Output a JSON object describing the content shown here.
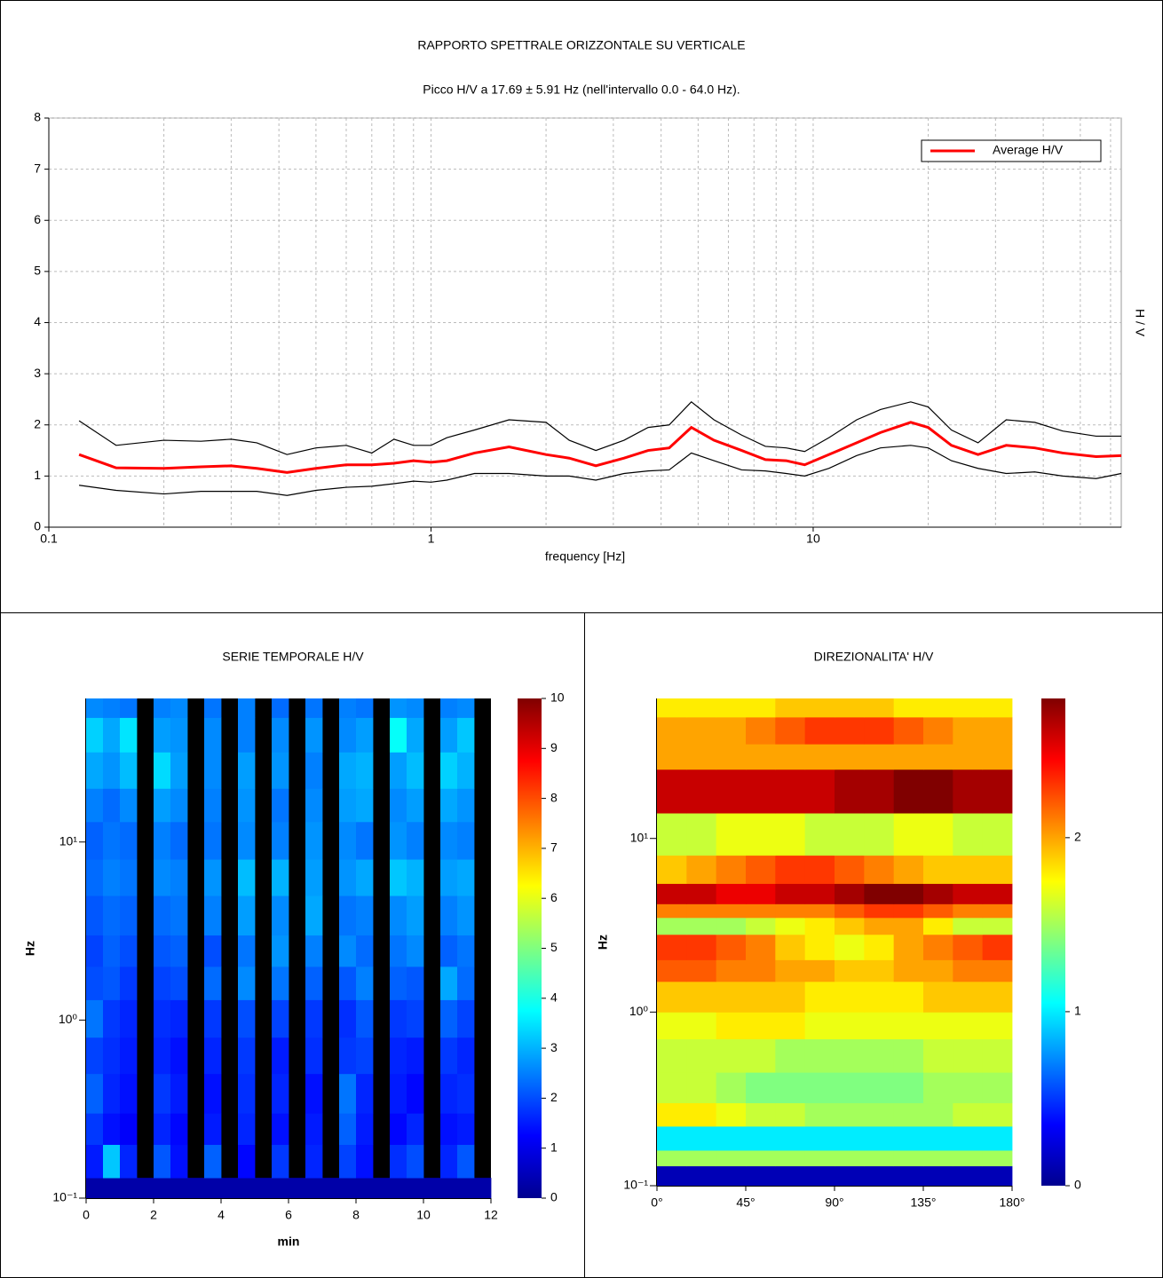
{
  "chart_data": [
    {
      "type": "line",
      "title": "RAPPORTO SPETTRALE ORIZZONTALE SU VERTICALE",
      "subtitle": "Picco H/V a 17.69 ± 5.91 Hz (nell'intervallo 0.0 - 64.0 Hz).",
      "xlabel": "frequency [Hz]",
      "ylabel": "H / V",
      "xscale": "log",
      "xlim": [
        0.1,
        64
      ],
      "ylim": [
        0,
        8
      ],
      "xticks": [
        0.1,
        1,
        10
      ],
      "xminorticks": [
        0.2,
        0.3,
        0.4,
        0.5,
        0.6,
        0.7,
        0.8,
        0.9,
        2,
        3,
        4,
        5,
        6,
        7,
        8,
        9,
        20,
        30,
        40,
        50,
        60
      ],
      "yticks": [
        0,
        1,
        2,
        3,
        4,
        5,
        6,
        7,
        8
      ],
      "grid": true,
      "legend": "upper right",
      "x": [
        0.12,
        0.15,
        0.2,
        0.25,
        0.3,
        0.35,
        0.42,
        0.5,
        0.6,
        0.7,
        0.8,
        0.9,
        1.0,
        1.1,
        1.3,
        1.6,
        2.0,
        2.3,
        2.7,
        3.2,
        3.7,
        4.2,
        4.8,
        5.5,
        6.5,
        7.5,
        8.5,
        9.5,
        11,
        13,
        15,
        18,
        20,
        23,
        27,
        32,
        38,
        45,
        55,
        64
      ],
      "series": [
        {
          "name": "Average H/V",
          "color": "#ff0000",
          "values": [
            1.42,
            1.16,
            1.15,
            1.18,
            1.2,
            1.15,
            1.07,
            1.15,
            1.22,
            1.22,
            1.25,
            1.3,
            1.27,
            1.3,
            1.45,
            1.57,
            1.42,
            1.35,
            1.2,
            1.35,
            1.5,
            1.55,
            1.95,
            1.7,
            1.5,
            1.32,
            1.3,
            1.22,
            1.42,
            1.65,
            1.85,
            2.05,
            1.95,
            1.6,
            1.42,
            1.6,
            1.55,
            1.45,
            1.38,
            1.4
          ]
        },
        {
          "color": "#000000",
          "values": [
            2.08,
            1.6,
            1.7,
            1.68,
            1.72,
            1.65,
            1.42,
            1.55,
            1.6,
            1.45,
            1.72,
            1.6,
            1.6,
            1.75,
            1.9,
            2.1,
            2.05,
            1.7,
            1.5,
            1.7,
            1.95,
            2.0,
            2.45,
            2.1,
            1.8,
            1.58,
            1.55,
            1.48,
            1.75,
            2.1,
            2.3,
            2.45,
            2.35,
            1.9,
            1.65,
            2.1,
            2.05,
            1.88,
            1.78,
            1.78
          ]
        },
        {
          "color": "#000000",
          "values": [
            0.82,
            0.72,
            0.65,
            0.7,
            0.7,
            0.7,
            0.62,
            0.72,
            0.78,
            0.8,
            0.85,
            0.9,
            0.88,
            0.92,
            1.05,
            1.05,
            1.0,
            1.0,
            0.92,
            1.05,
            1.1,
            1.12,
            1.45,
            1.3,
            1.12,
            1.1,
            1.05,
            1.0,
            1.15,
            1.4,
            1.55,
            1.6,
            1.55,
            1.3,
            1.15,
            1.05,
            1.08,
            1.0,
            0.95,
            1.05
          ]
        }
      ]
    },
    {
      "type": "heatmap",
      "title": "SERIE TEMPORALE H/V",
      "xlabel": "min",
      "ylabel": "Hz",
      "yscale": "log",
      "colormap": "jet",
      "nan_color": "#000000",
      "xlim": [
        0,
        12
      ],
      "ylim": [
        0.1,
        64
      ],
      "xticks": [
        0,
        2,
        4,
        6,
        8,
        10,
        12
      ],
      "yticks": [
        {
          "value": 0.1,
          "label": "10⁻¹"
        },
        {
          "value": 1,
          "label": "10⁰"
        },
        {
          "value": 10,
          "label": "10¹"
        }
      ],
      "zlim": [
        0,
        10
      ],
      "zticks": [
        0,
        1,
        2,
        3,
        4,
        5,
        6,
        7,
        8,
        9,
        10
      ],
      "x_edges": [
        0,
        0.5,
        1,
        1.5,
        2,
        2.5,
        3,
        3.5,
        4,
        4.5,
        5,
        5.5,
        6,
        6.5,
        7,
        7.5,
        8,
        8.5,
        9,
        9.5,
        10,
        10.5,
        11,
        11.5,
        12
      ],
      "y_edges": [
        0.1,
        0.13,
        0.2,
        0.3,
        0.5,
        0.8,
        1.3,
        2,
        3,
        5,
        8,
        13,
        20,
        32,
        50,
        64
      ],
      "z": [
        [
          0.4,
          0.4,
          0.4,
          0.4,
          0.4,
          0.4,
          0.4,
          0.4,
          0.4,
          0.4,
          0.4,
          0.4,
          0.4,
          0.4,
          0.4,
          0.4,
          0.4,
          0.4,
          0.4,
          0.4,
          0.4,
          0.4,
          0.4,
          0.4
        ],
        [
          1.5,
          3.2,
          1.6,
          null,
          2.1,
          1.4,
          null,
          2.2,
          null,
          1.3,
          null,
          1.8,
          null,
          1.6,
          null,
          1.9,
          1.4,
          null,
          1.7,
          2.0,
          null,
          1.6,
          2.1,
          null
        ],
        [
          1.8,
          1.4,
          1.2,
          null,
          1.6,
          1.3,
          null,
          1.5,
          null,
          1.6,
          null,
          1.4,
          null,
          1.5,
          null,
          2.2,
          1.5,
          null,
          1.3,
          1.6,
          null,
          1.4,
          1.5,
          null
        ],
        [
          2.2,
          1.6,
          1.4,
          null,
          1.8,
          1.5,
          null,
          1.4,
          null,
          1.7,
          null,
          1.6,
          null,
          1.4,
          null,
          2.4,
          1.6,
          null,
          1.5,
          1.3,
          null,
          1.6,
          1.7,
          null
        ],
        [
          1.9,
          1.7,
          1.5,
          null,
          1.6,
          1.4,
          null,
          1.6,
          null,
          1.8,
          null,
          1.5,
          null,
          1.7,
          null,
          1.8,
          1.9,
          null,
          1.6,
          1.5,
          null,
          1.8,
          1.6,
          null
        ],
        [
          2.4,
          1.8,
          1.6,
          null,
          1.7,
          1.6,
          null,
          1.8,
          null,
          2.0,
          null,
          1.9,
          null,
          1.8,
          null,
          1.7,
          2.1,
          null,
          1.8,
          1.9,
          null,
          2.2,
          1.9,
          null
        ],
        [
          2.0,
          2.1,
          1.8,
          null,
          1.9,
          2.0,
          null,
          2.3,
          null,
          2.6,
          null,
          2.4,
          null,
          2.2,
          null,
          2.1,
          2.5,
          null,
          2.2,
          2.1,
          null,
          2.9,
          2.3,
          null
        ],
        [
          1.9,
          2.2,
          2.0,
          null,
          2.1,
          2.2,
          null,
          2.0,
          null,
          2.4,
          null,
          2.7,
          null,
          2.5,
          null,
          2.6,
          2.3,
          null,
          2.4,
          2.6,
          null,
          2.2,
          2.4,
          null
        ],
        [
          2.1,
          2.3,
          2.2,
          null,
          2.3,
          2.4,
          null,
          2.5,
          null,
          2.8,
          null,
          2.6,
          null,
          2.9,
          null,
          2.4,
          2.5,
          null,
          2.6,
          2.8,
          null,
          2.5,
          2.7,
          null
        ],
        [
          2.3,
          2.5,
          2.4,
          null,
          2.6,
          2.5,
          null,
          2.7,
          null,
          3.1,
          null,
          3.0,
          null,
          2.8,
          null,
          2.7,
          2.9,
          null,
          3.2,
          3.0,
          null,
          2.8,
          2.9,
          null
        ],
        [
          2.2,
          2.4,
          2.3,
          null,
          2.5,
          2.3,
          null,
          2.4,
          null,
          2.6,
          null,
          2.5,
          null,
          2.7,
          null,
          2.6,
          2.4,
          null,
          2.7,
          2.5,
          null,
          2.6,
          2.5,
          null
        ],
        [
          2.5,
          2.3,
          2.6,
          null,
          2.8,
          2.6,
          null,
          2.5,
          null,
          2.7,
          null,
          2.4,
          null,
          2.6,
          null,
          2.8,
          2.9,
          null,
          2.6,
          2.8,
          null,
          2.9,
          2.7,
          null
        ],
        [
          2.9,
          2.7,
          3.1,
          null,
          3.4,
          2.8,
          null,
          2.6,
          null,
          2.8,
          null,
          2.7,
          null,
          2.5,
          null,
          2.9,
          3.0,
          null,
          2.8,
          3.1,
          null,
          3.3,
          3.0,
          null
        ],
        [
          3.3,
          2.9,
          3.5,
          null,
          2.8,
          2.7,
          null,
          2.6,
          null,
          2.5,
          null,
          2.6,
          null,
          2.7,
          null,
          2.6,
          2.8,
          null,
          3.8,
          2.9,
          null,
          2.8,
          3.2,
          null
        ],
        [
          2.6,
          2.5,
          2.4,
          null,
          2.5,
          2.6,
          null,
          2.4,
          null,
          2.5,
          null,
          2.3,
          null,
          2.4,
          null,
          2.5,
          2.4,
          null,
          2.7,
          2.6,
          null,
          2.5,
          2.6,
          null
        ]
      ]
    },
    {
      "type": "heatmap",
      "title": "DIREZIONALITA' H/V",
      "ylabel": "Hz",
      "yscale": "log",
      "colormap": "jet",
      "xlim": [
        0,
        180
      ],
      "ylim": [
        0.1,
        64
      ],
      "xticks": [
        {
          "value": 0,
          "label": "0°"
        },
        {
          "value": 45,
          "label": "45°"
        },
        {
          "value": 90,
          "label": "90°"
        },
        {
          "value": 135,
          "label": "135°"
        },
        {
          "value": 180,
          "label": "180°"
        }
      ],
      "yticks": [
        {
          "value": 0.1,
          "label": "10⁻¹"
        },
        {
          "value": 1,
          "label": "10⁰"
        },
        {
          "value": 10,
          "label": "10¹"
        }
      ],
      "zlim": [
        0,
        2.8
      ],
      "zticks": [
        0,
        1,
        2
      ],
      "x_edges": [
        0,
        15,
        30,
        45,
        60,
        75,
        90,
        105,
        120,
        135,
        150,
        165,
        180
      ],
      "y_edges": [
        0.1,
        0.13,
        0.16,
        0.22,
        0.3,
        0.45,
        0.7,
        1,
        1.5,
        2,
        2.8,
        3.5,
        4.2,
        5.5,
        8,
        14,
        25,
        35,
        50,
        64
      ],
      "z": [
        [
          0.15,
          0.15,
          0.15,
          0.15,
          0.15,
          0.15,
          0.15,
          0.15,
          0.15,
          0.15,
          0.15,
          0.15
        ],
        [
          1.5,
          1.5,
          1.5,
          1.5,
          1.5,
          1.5,
          1.5,
          1.5,
          1.5,
          1.5,
          1.5,
          1.5
        ],
        [
          1.0,
          1.0,
          1.0,
          1.0,
          1.0,
          1.0,
          1.0,
          1.0,
          1.0,
          1.0,
          1.0,
          1.0
        ],
        [
          1.8,
          1.8,
          1.7,
          1.6,
          1.6,
          1.5,
          1.5,
          1.5,
          1.5,
          1.5,
          1.6,
          1.6
        ],
        [
          1.6,
          1.6,
          1.5,
          1.4,
          1.4,
          1.4,
          1.4,
          1.4,
          1.4,
          1.5,
          1.5,
          1.5
        ],
        [
          1.6,
          1.6,
          1.6,
          1.6,
          1.5,
          1.5,
          1.5,
          1.5,
          1.5,
          1.6,
          1.6,
          1.6
        ],
        [
          1.7,
          1.7,
          1.8,
          1.8,
          1.8,
          1.7,
          1.7,
          1.7,
          1.7,
          1.7,
          1.7,
          1.7
        ],
        [
          1.9,
          1.9,
          1.9,
          1.9,
          1.9,
          1.8,
          1.8,
          1.8,
          1.8,
          1.9,
          1.9,
          1.9
        ],
        [
          2.2,
          2.2,
          2.1,
          2.1,
          2.0,
          2.0,
          1.9,
          1.9,
          2.0,
          2.0,
          2.1,
          2.1
        ],
        [
          2.3,
          2.3,
          2.2,
          2.1,
          1.9,
          1.8,
          1.7,
          1.8,
          2.0,
          2.1,
          2.2,
          2.3
        ],
        [
          1.5,
          1.5,
          1.5,
          1.6,
          1.7,
          1.8,
          1.9,
          2.0,
          2.0,
          1.8,
          1.6,
          1.6
        ],
        [
          2.1,
          2.1,
          2.1,
          2.1,
          2.1,
          2.1,
          2.2,
          2.3,
          2.3,
          2.2,
          2.1,
          2.1
        ],
        [
          2.6,
          2.6,
          2.5,
          2.5,
          2.6,
          2.6,
          2.7,
          2.8,
          2.8,
          2.7,
          2.6,
          2.6
        ],
        [
          1.9,
          2.0,
          2.1,
          2.2,
          2.3,
          2.3,
          2.2,
          2.1,
          2.0,
          1.9,
          1.9,
          1.9
        ],
        [
          1.6,
          1.6,
          1.7,
          1.7,
          1.7,
          1.6,
          1.6,
          1.6,
          1.7,
          1.7,
          1.6,
          1.6
        ],
        [
          2.6,
          2.6,
          2.6,
          2.6,
          2.6,
          2.6,
          2.7,
          2.7,
          2.8,
          2.8,
          2.7,
          2.7
        ],
        [
          2.0,
          2.0,
          2.0,
          2.0,
          2.0,
          2.0,
          2.0,
          2.0,
          2.0,
          2.0,
          2.0,
          2.0
        ],
        [
          2.0,
          2.0,
          2.0,
          2.1,
          2.2,
          2.3,
          2.3,
          2.3,
          2.2,
          2.1,
          2.0,
          2.0
        ],
        [
          1.8,
          1.8,
          1.8,
          1.8,
          1.9,
          1.9,
          1.9,
          1.9,
          1.8,
          1.8,
          1.8,
          1.8
        ]
      ]
    }
  ]
}
